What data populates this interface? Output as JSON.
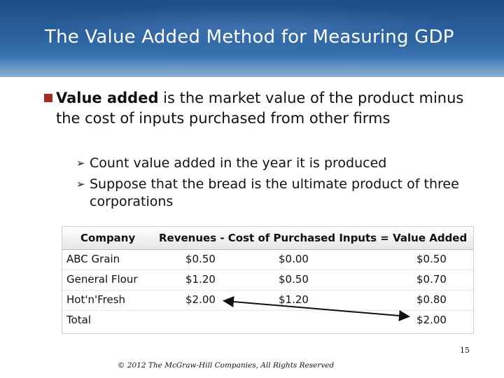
{
  "title": "The Value Added Method for Measuring GDP",
  "bullet": {
    "term": "Value added",
    "rest": " is the market value of the product minus the cost of inputs purchased from other firms"
  },
  "sub_bullets": [
    "Count value added in the year it is produced",
    "Suppose that the bread is the ultimate product of three corporations"
  ],
  "table": {
    "headers": {
      "company": "Company",
      "formula": "Revenues - Cost of Purchased Inputs = Value Added"
    },
    "rows": [
      {
        "company": "ABC Grain",
        "revenues": "$0.50",
        "cost": "$0.00",
        "value_added": "$0.50"
      },
      {
        "company": "General Flour",
        "revenues": "$1.20",
        "cost": "$0.50",
        "value_added": "$0.70"
      },
      {
        "company": "Hot'n'Fresh",
        "revenues": "$2.00",
        "cost": "$1.20",
        "value_added": "$0.80"
      },
      {
        "company": "Total",
        "revenues": "",
        "cost": "",
        "value_added": "$2.00"
      }
    ]
  },
  "footer": "© 2012 The McGraw-Hill Companies, All Rights Reserved",
  "page_number": "15",
  "colors": {
    "header_blue": "#2a5f9d",
    "bullet_red": "#a52a1f"
  }
}
